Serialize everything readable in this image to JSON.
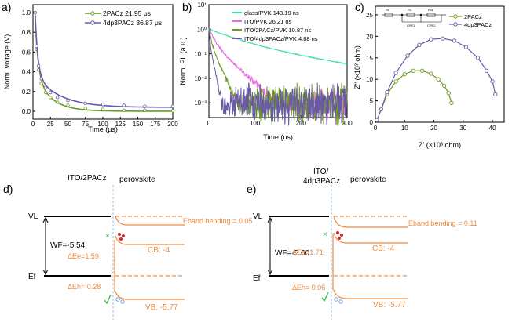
{
  "panel_labels": {
    "a": "a)",
    "b": "b)",
    "c": "c)",
    "d": "d)",
    "e": "e)"
  },
  "colors": {
    "green": "#6c9a1f",
    "purple": "#6a5aa6",
    "pink": "#e86ce8",
    "teal": "#31e09a",
    "orange": "#f08a3c",
    "dashed_blue": "#8fc3ee",
    "red_dot": "#e0242a",
    "cross_green": "#35b84a",
    "hole_blue": "#6f9fe0"
  },
  "chart_data": [
    {
      "panel": "a",
      "type": "line",
      "xlabel": "Time (μs)",
      "ylabel": "Norm. voltage (V)",
      "xlim": [
        0,
        200
      ],
      "ylim": [
        -0.08,
        1.08
      ],
      "xticks": [
        0,
        25,
        50,
        75,
        100,
        125,
        150,
        175,
        200
      ],
      "yticks": [
        0.0,
        0.2,
        0.4,
        0.6,
        0.8,
        1.0
      ],
      "xtick_labels": [
        "0",
        "25",
        "50",
        "75",
        "100",
        "125",
        "150",
        "175",
        "200"
      ],
      "ytick_labels": [
        "0.0",
        "0.2",
        "0.4",
        "0.6",
        "0.8",
        "1.0"
      ],
      "legend_position": "top-right",
      "series": [
        {
          "name": "2PACz 21.95 μs",
          "tau": 21.95,
          "color": "#6c9a1f",
          "x": [
            3,
            5,
            8,
            12,
            18,
            25,
            35,
            50,
            75,
            100,
            130,
            160,
            200
          ],
          "y": [
            1.0,
            0.63,
            0.42,
            0.28,
            0.19,
            0.14,
            0.09,
            0.06,
            0.03,
            0.02,
            0.01,
            0.01,
            0.005
          ]
        },
        {
          "name": "4dp3PACz 36.87 μs",
          "tau": 36.87,
          "color": "#6a5aa6",
          "x": [
            3,
            5,
            8,
            12,
            18,
            25,
            35,
            50,
            75,
            100,
            130,
            160,
            200
          ],
          "y": [
            1.0,
            0.66,
            0.46,
            0.33,
            0.24,
            0.19,
            0.14,
            0.11,
            0.08,
            0.07,
            0.06,
            0.05,
            0.05
          ]
        }
      ]
    },
    {
      "panel": "b",
      "type": "line",
      "xlabel": "Time (ns)",
      "ylabel": "Norm. PL (a.u.)",
      "xlim": [
        0,
        300
      ],
      "ylim_log10": [
        -3.6,
        1.0
      ],
      "xticks": [
        0,
        100,
        200,
        300
      ],
      "xtick_labels": [
        "0",
        "100",
        "200",
        "300"
      ],
      "yticks_log10": [
        -3,
        -2,
        -1,
        0,
        1
      ],
      "ytick_labels": [
        "10⁻³",
        "10⁻²",
        "10⁻¹",
        "10⁰",
        "10¹"
      ],
      "legend_position": "top-right",
      "series": [
        {
          "name": "glass/PVK",
          "label_value": "143.19 ns",
          "tau": 143.19,
          "color": "#31e09a"
        },
        {
          "name": "ITO/PVK",
          "label_value": "26.21 ns",
          "tau": 26.21,
          "color": "#e86ce8"
        },
        {
          "name": "ITO/2PACz/PVK",
          "label_value": "10.87 ns",
          "tau": 10.87,
          "color": "#6c9a1f"
        },
        {
          "name": "ITO/4dp3PACz/PVK",
          "label_value": "4.88 ns",
          "tau": 4.88,
          "color": "#6a5aa6"
        }
      ]
    },
    {
      "panel": "c",
      "type": "scatter",
      "xlabel": "Z' (×10³ ohm)",
      "ylabel": "Z'' (×10³ ohm)",
      "xlim": [
        0,
        44
      ],
      "ylim": [
        0,
        27
      ],
      "xticks": [
        0,
        10,
        20,
        30,
        40
      ],
      "yticks": [
        0,
        5,
        10,
        15,
        20,
        25
      ],
      "xtick_labels": [
        "0",
        "10",
        "20",
        "30",
        "40"
      ],
      "ytick_labels": [
        "0",
        "5",
        "10",
        "15",
        "20",
        "25"
      ],
      "legend_position": "top-right",
      "inset": {
        "labels": [
          "Rs",
          "R1",
          "Rct",
          "CPE1",
          "CPE2"
        ]
      },
      "series": [
        {
          "name": "2PACz",
          "color": "#6c9a1f",
          "x": [
            0.5,
            2,
            4,
            7,
            10,
            13,
            16,
            19,
            21.5,
            23.5,
            25,
            26
          ],
          "y": [
            0.5,
            3,
            6.5,
            9.5,
            11.2,
            12,
            12,
            11.3,
            10,
            8.5,
            6.8,
            4.5
          ]
        },
        {
          "name": "4dp3PACz",
          "color": "#6a5aa6",
          "x": [
            0.5,
            2,
            4,
            7,
            11,
            15,
            19,
            23,
            27,
            31,
            35,
            38,
            40,
            41
          ],
          "y": [
            0.5,
            3,
            7,
            11.5,
            15.5,
            18,
            19.3,
            19.5,
            19,
            17.5,
            15,
            12,
            9.5,
            6.5
          ]
        }
      ]
    }
  ],
  "diagram_d": {
    "material_left": "ITO/2PACz",
    "material_right": "perovskite",
    "vl_label": "VL",
    "ef_label": "Ef",
    "wf_label": "WF=-5.54",
    "band_bending_label": "Eband bending",
    "band_bending_value": "= 0.05",
    "de_e_label": "ΔEe=1.59",
    "de_h_label": "ΔEh= 0.28",
    "cb_label": "CB: -4",
    "vb_label": "VB: -5.77"
  },
  "diagram_e": {
    "material_left_line1": "ITO/",
    "material_left_line2": "4dp3PACz",
    "material_right": "perovskite",
    "vl_label": "VL",
    "ef_label": "Ef",
    "wf_label": "WF=-5.60",
    "band_bending_label": "Eband bending",
    "band_bending_value": "= 0.11",
    "de_e_label": "ΔEe=1.71",
    "de_h_label": "ΔEh= 0.06",
    "cb_label": "CB: -4",
    "vb_label": "VB: -5.77"
  }
}
